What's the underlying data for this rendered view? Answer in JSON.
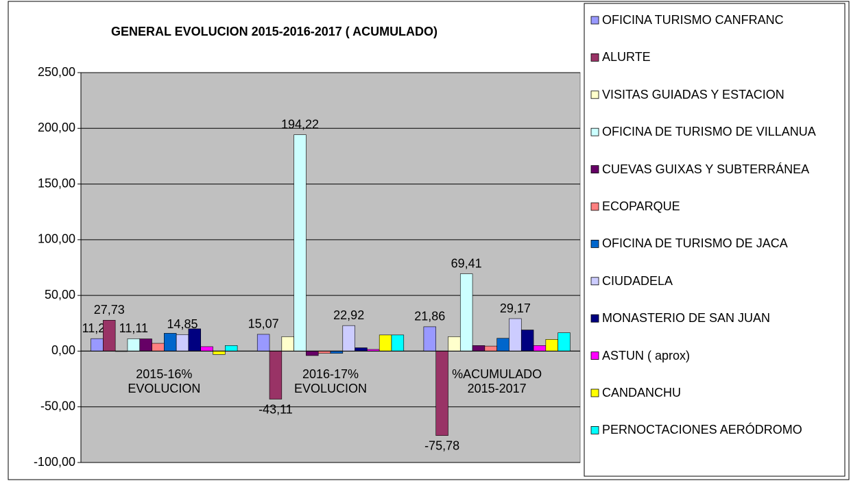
{
  "chart_data": {
    "type": "bar",
    "title": "GENERAL EVOLUCION 2015-2016-2017 ( ACUMULADO)",
    "categories": [
      "2015-16% EVOLUCION",
      "2016-17% EVOLUCION",
      "%ACUMULADO 2015-2017"
    ],
    "ylim": [
      -100,
      250
    ],
    "yticks": [
      {
        "value": -100,
        "label": "-100,00"
      },
      {
        "value": -50,
        "label": "-50,00"
      },
      {
        "value": 0,
        "label": "0,00"
      },
      {
        "value": 50,
        "label": "50,00"
      },
      {
        "value": 100,
        "label": "100,00"
      },
      {
        "value": 150,
        "label": "150,00"
      },
      {
        "value": 200,
        "label": "200,00"
      },
      {
        "value": 250,
        "label": "250,00"
      }
    ],
    "grid": true,
    "legend": "right",
    "series": [
      {
        "name": "OFICINA TURISMO CANFRANC",
        "color": "#9999ff",
        "values": [
          11.22,
          15.07,
          21.86
        ],
        "value_labels": [
          "11,22",
          "15,07",
          "21,86"
        ]
      },
      {
        "name": "ALURTE",
        "color": "#993366",
        "values": [
          27.73,
          -43.11,
          -75.78
        ],
        "value_labels": [
          "27,73",
          "-43,11",
          "-75,78"
        ]
      },
      {
        "name": "VISITAS GUIADAS Y ESTACION",
        "color": "#ffffcc",
        "values": [
          0,
          13,
          13
        ]
      },
      {
        "name": "OFICINA DE TURISMO DE VILLANUA",
        "color": "#ccffff",
        "values": [
          11.11,
          194.22,
          69.41
        ],
        "value_labels": [
          "11,11",
          "194,22",
          "69,41"
        ]
      },
      {
        "name": "CUEVAS GUIXAS Y SUBTERRÁNEA",
        "color": "#660066",
        "values": [
          11,
          -4,
          5
        ]
      },
      {
        "name": "ECOPARQUE",
        "color": "#ff8080",
        "values": [
          7,
          -2,
          4.5
        ]
      },
      {
        "name": "OFICINA DE TURISMO DE JACA",
        "color": "#0066cc",
        "values": [
          16,
          -2,
          11.5
        ]
      },
      {
        "name": "CIUDADELA",
        "color": "#ccccff",
        "values": [
          14.85,
          22.92,
          29.17
        ],
        "value_labels": [
          "14,85",
          "22,92",
          "29,17"
        ]
      },
      {
        "name": "MONASTERIO DE SAN JUAN",
        "color": "#000080",
        "values": [
          20,
          3,
          19
        ]
      },
      {
        "name": "ASTUN ( aprox)",
        "color": "#ff00ff",
        "values": [
          4,
          1.5,
          5
        ]
      },
      {
        "name": "CANDANCHU",
        "color": "#ffff00",
        "values": [
          -3,
          14.5,
          10.5
        ]
      },
      {
        "name": "PERNOCTACIONES AERÓDROMO",
        "color": "#00ffff",
        "values": [
          5,
          14.5,
          16.5
        ]
      }
    ]
  }
}
